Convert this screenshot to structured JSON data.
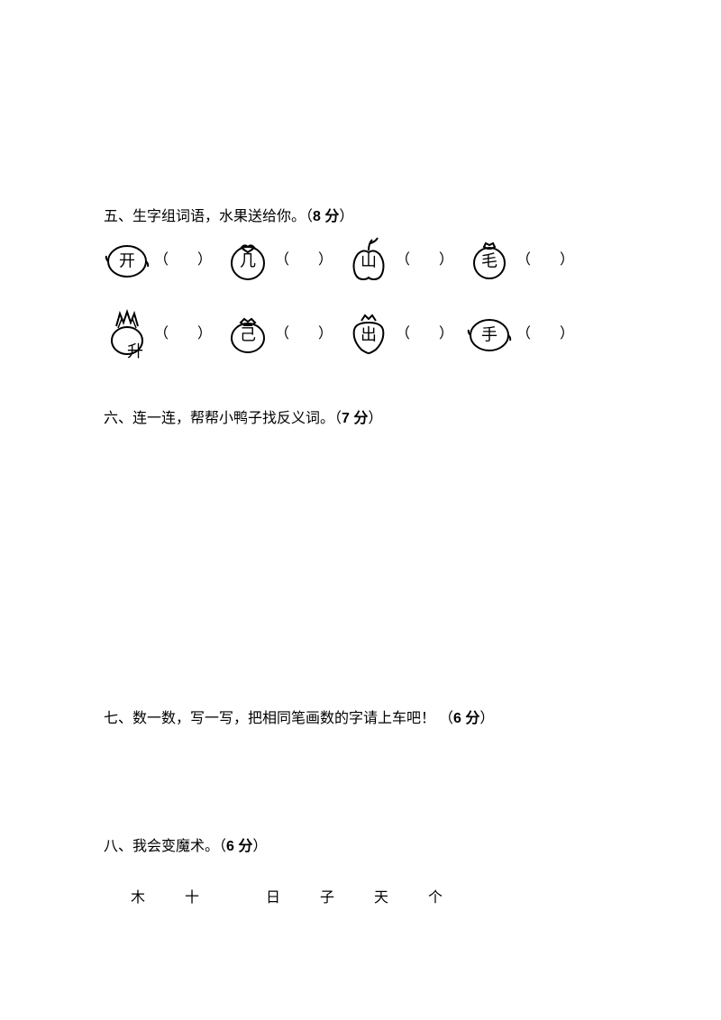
{
  "section5": {
    "title_prefix": "五、生字组词语，水果送给你。（",
    "points": "8 分",
    "title_suffix": "）",
    "row1": [
      {
        "char": "开",
        "icon": "lemon"
      },
      {
        "char": "几",
        "icon": "tomato"
      },
      {
        "char": "山",
        "icon": "apple"
      },
      {
        "char": "毛",
        "icon": "tangerine"
      }
    ],
    "row2": [
      {
        "char": "升",
        "icon": "pineapple"
      },
      {
        "char": "己",
        "icon": "pomegranate"
      },
      {
        "char": "出",
        "icon": "strawberry"
      },
      {
        "char": "手",
        "icon": "lemon"
      }
    ],
    "blank": "（        ）"
  },
  "section6": {
    "title_prefix": "六、连一连，帮帮小鸭子找反义词。（",
    "points": "7 分",
    "title_suffix": "）"
  },
  "section7": {
    "title_prefix": "七、数一数，写一写，把相同笔画数的字请上车吧！ （",
    "points": "6 分",
    "title_suffix": "）"
  },
  "section8": {
    "title_prefix": "八、我会变魔术。（",
    "points": "6 分",
    "title_suffix": "）",
    "chars": [
      "木",
      "十",
      "日",
      "子",
      "天",
      "个"
    ]
  }
}
